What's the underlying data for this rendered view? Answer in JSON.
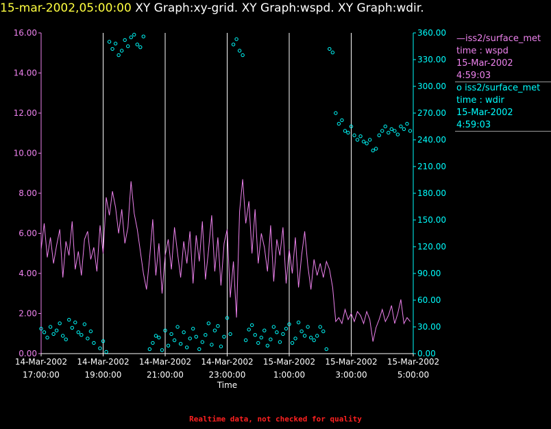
{
  "header": {
    "timestamp": "15-mar-2002,05:00:00",
    "graphs": "XY Graph:xy-grid.  XY Graph:wspd.  XY Graph:wdir."
  },
  "footer": {
    "note": "Realtime data, not checked for quality"
  },
  "colors": {
    "wspd": "#ee82ee",
    "wdir": "#00ffff",
    "grid": "#ffffff",
    "text": "#ffffff"
  },
  "legend": [
    {
      "symbol": "—",
      "name": "iss2/surface_met",
      "var": "time : wspd",
      "date": "15-Mar-2002",
      "time": "4:59:03",
      "color": "#ee82ee"
    },
    {
      "symbol": "o",
      "name": "iss2/surface_met",
      "var": "time : wdir",
      "date": "15-Mar-2002",
      "time": "4:59:03",
      "color": "#00ffff"
    }
  ],
  "chart_data": {
    "type": "line",
    "title": "15-mar-2002,05:00:00  XY Graph:xy-grid.  XY Graph:wspd.  XY Graph:wdir.",
    "xlabel": "Time",
    "x_unit": "hours since 14-Mar-2002 17:00",
    "xlim": [
      0,
      12
    ],
    "x_ticks": [
      {
        "value": 0,
        "date": "14-Mar-2002",
        "time": "17:00:00"
      },
      {
        "value": 2,
        "date": "14-Mar-2002",
        "time": "19:00:00"
      },
      {
        "value": 4,
        "date": "14-Mar-2002",
        "time": "21:00:00"
      },
      {
        "value": 6,
        "date": "14-Mar-2002",
        "time": "23:00:00"
      },
      {
        "value": 8,
        "date": "15-Mar-2002",
        "time": "1:00:00"
      },
      {
        "value": 10,
        "date": "15-Mar-2002",
        "time": "3:00:00"
      },
      {
        "value": 12,
        "date": "15-Mar-2002",
        "time": "5:00:00"
      }
    ],
    "grid_x": [
      2,
      4,
      6,
      8,
      10,
      12
    ],
    "y_left": {
      "label": "wspd",
      "lim": [
        0,
        16
      ],
      "ticks": [
        "0.00",
        "2.00",
        "4.00",
        "6.00",
        "8.00",
        "10.00",
        "12.00",
        "14.00",
        "16.00"
      ]
    },
    "y_right": {
      "label": "wdir",
      "lim": [
        0,
        360
      ],
      "ticks": [
        "0.00",
        "30.00",
        "60.00",
        "90.00",
        "120.00",
        "150.00",
        "180.00",
        "210.00",
        "240.00",
        "270.00",
        "300.00",
        "330.00",
        "360.00"
      ]
    },
    "series": [
      {
        "name": "wspd",
        "axis": "left",
        "style": "line",
        "x": [
          0,
          0.1,
          0.2,
          0.3,
          0.4,
          0.5,
          0.6,
          0.7,
          0.8,
          0.9,
          1,
          1.1,
          1.2,
          1.3,
          1.4,
          1.5,
          1.6,
          1.7,
          1.8,
          1.9,
          2,
          2.1,
          2.2,
          2.3,
          2.4,
          2.5,
          2.6,
          2.7,
          2.8,
          2.9,
          3,
          3.1,
          3.2,
          3.3,
          3.4,
          3.5,
          3.6,
          3.7,
          3.8,
          3.9,
          4,
          4.1,
          4.2,
          4.3,
          4.4,
          4.5,
          4.6,
          4.7,
          4.8,
          4.9,
          5,
          5.1,
          5.2,
          5.3,
          5.4,
          5.5,
          5.6,
          5.7,
          5.8,
          5.9,
          6,
          6.1,
          6.2,
          6.3,
          6.4,
          6.5,
          6.6,
          6.7,
          6.8,
          6.9,
          7,
          7.1,
          7.2,
          7.3,
          7.4,
          7.5,
          7.6,
          7.7,
          7.8,
          7.9,
          8,
          8.1,
          8.2,
          8.3,
          8.4,
          8.5,
          8.6,
          8.7,
          8.8,
          8.9,
          9,
          9.1,
          9.2,
          9.3,
          9.4,
          9.5,
          9.6,
          9.7,
          9.8,
          9.9,
          10,
          10.1,
          10.2,
          10.3,
          10.4,
          10.5,
          10.6,
          10.7,
          10.8,
          10.9,
          11,
          11.1,
          11.2,
          11.3,
          11.4,
          11.5,
          11.6,
          11.7,
          11.8,
          11.9
        ],
        "y": [
          5.2,
          6.5,
          4.8,
          5.8,
          4.5,
          5.4,
          6.2,
          3.8,
          5.6,
          4.9,
          6.6,
          4.2,
          5.1,
          3.9,
          5.7,
          6.1,
          4.7,
          5.3,
          4.1,
          6.4,
          5.0,
          7.8,
          6.9,
          8.1,
          7.3,
          6.0,
          7.2,
          5.5,
          6.3,
          8.6,
          7.0,
          6.2,
          5.1,
          4.0,
          3.2,
          4.8,
          6.7,
          3.9,
          5.5,
          3.0,
          4.9,
          5.7,
          4.2,
          6.3,
          5.0,
          3.8,
          5.6,
          4.5,
          6.1,
          3.5,
          5.9,
          4.6,
          6.6,
          3.7,
          5.2,
          6.9,
          4.1,
          5.8,
          3.4,
          5.5,
          6.2,
          2.8,
          4.6,
          1.8,
          7.1,
          8.7,
          6.5,
          7.6,
          5.0,
          7.2,
          4.5,
          6.0,
          5.3,
          4.1,
          6.4,
          3.6,
          5.7,
          4.9,
          6.3,
          3.5,
          5.2,
          4.0,
          5.8,
          3.3,
          4.9,
          6.1,
          4.4,
          3.2,
          4.7,
          3.9,
          4.5,
          3.8,
          4.6,
          4.2,
          3.3,
          1.6,
          1.8,
          1.5,
          2.2,
          1.7,
          2.0,
          1.6,
          2.1,
          1.9,
          1.5,
          2.1,
          1.7,
          0.6,
          1.3,
          1.7,
          2.2,
          1.6,
          1.9,
          2.4,
          1.5,
          2.0,
          2.7,
          1.5,
          1.8,
          1.6
        ]
      },
      {
        "name": "wdir",
        "axis": "right",
        "style": "markers",
        "x": [
          0,
          0.1,
          0.2,
          0.3,
          0.4,
          0.5,
          0.6,
          0.7,
          0.8,
          0.9,
          1,
          1.1,
          1.2,
          1.3,
          1.4,
          1.5,
          1.6,
          1.7,
          1.9,
          2,
          2.1,
          2.2,
          2.3,
          2.4,
          2.5,
          2.6,
          2.7,
          2.8,
          2.9,
          3,
          3.1,
          3.2,
          3.3,
          3.5,
          3.6,
          3.7,
          3.8,
          3.9,
          4,
          4.1,
          4.2,
          4.3,
          4.4,
          4.5,
          4.6,
          4.7,
          4.8,
          4.9,
          5,
          5.1,
          5.2,
          5.3,
          5.4,
          5.5,
          5.6,
          5.7,
          5.8,
          5.9,
          6,
          6.1,
          6.2,
          6.3,
          6.4,
          6.5,
          6.6,
          6.7,
          6.8,
          6.9,
          7,
          7.1,
          7.2,
          7.3,
          7.4,
          7.5,
          7.6,
          7.7,
          7.8,
          7.9,
          8,
          8.1,
          8.2,
          8.3,
          8.4,
          8.5,
          8.6,
          8.7,
          8.8,
          8.9,
          9,
          9.1,
          9.2,
          9.3,
          9.4,
          9.5,
          9.6,
          9.7,
          9.8,
          9.9,
          10,
          10.1,
          10.2,
          10.3,
          10.4,
          10.5,
          10.6,
          10.7,
          10.8,
          10.9,
          11,
          11.1,
          11.2,
          11.3,
          11.4,
          11.5,
          11.6,
          11.7,
          11.8,
          11.9
        ],
        "y": [
          28,
          24,
          18,
          30,
          22,
          26,
          34,
          20,
          16,
          38,
          29,
          35,
          24,
          21,
          33,
          17,
          25,
          12,
          6,
          14,
          2,
          350,
          342,
          348,
          335,
          340,
          352,
          345,
          355,
          358,
          347,
          344,
          356,
          5,
          12,
          20,
          18,
          4,
          26,
          9,
          22,
          15,
          30,
          11,
          24,
          7,
          17,
          28,
          19,
          5,
          13,
          21,
          34,
          10,
          26,
          31,
          8,
          19,
          40,
          22,
          347,
          353,
          340,
          335,
          15,
          27,
          32,
          21,
          12,
          18,
          26,
          9,
          16,
          30,
          24,
          13,
          22,
          28,
          33,
          12,
          17,
          35,
          25,
          20,
          30,
          18,
          15,
          20,
          30,
          25,
          5,
          342,
          338,
          270,
          258,
          262,
          250,
          248,
          255,
          245,
          240,
          244,
          238,
          236,
          240,
          228,
          230,
          245,
          250,
          255,
          248,
          252,
          250,
          246,
          255,
          252,
          258,
          250
        ]
      }
    ]
  }
}
